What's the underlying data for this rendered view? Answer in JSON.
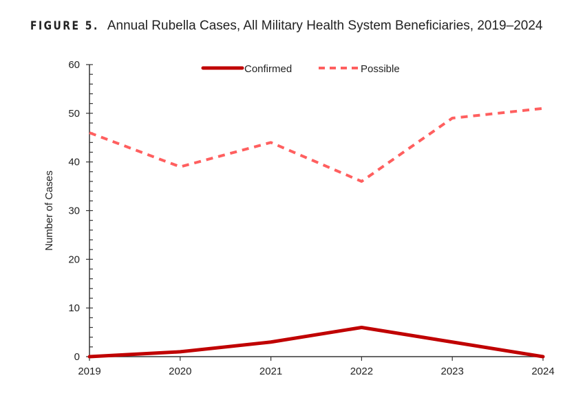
{
  "title": {
    "label": "FIGURE 5.",
    "text": "Annual Rubella Cases, All Military Health System Beneficiaries, 2019–2024"
  },
  "chart_data": {
    "type": "line",
    "title": "Annual Rubella Cases, All Military Health System Beneficiaries, 2019–2024",
    "xlabel": "",
    "ylabel": "Number of Cases",
    "categories": [
      "2019",
      "2020",
      "2021",
      "2022",
      "2023",
      "2024"
    ],
    "ylim": [
      0,
      60
    ],
    "yticks": [
      0,
      10,
      20,
      30,
      40,
      50,
      60
    ],
    "grid": false,
    "legend_placement": "top-center",
    "series": [
      {
        "name": "Confirmed",
        "values": [
          0,
          1,
          3,
          6,
          3,
          0
        ],
        "color": "#c00000",
        "style": "solid"
      },
      {
        "name": "Possible",
        "values": [
          46,
          39,
          44,
          36,
          49,
          51
        ],
        "color": "#ff5f5f",
        "style": "dashed"
      }
    ]
  }
}
